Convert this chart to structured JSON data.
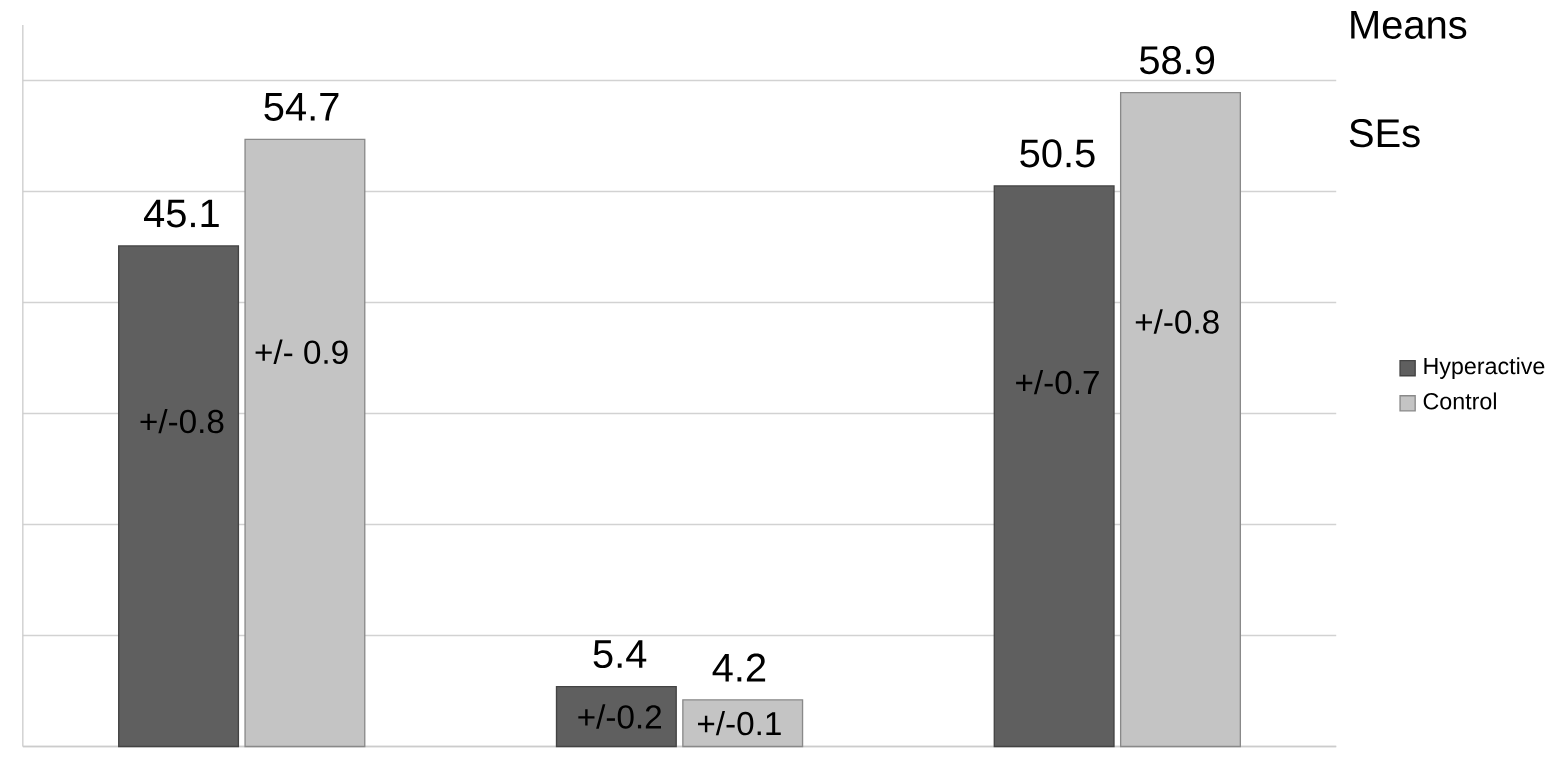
{
  "chart_data": {
    "type": "bar",
    "categories": [
      null,
      null,
      null
    ],
    "series": [
      {
        "name": "Hyperactive",
        "color": "#5f5f5f",
        "values": [
          45.1,
          5.4,
          50.5
        ]
      },
      {
        "name": "Control",
        "color": "#c4c4c4",
        "values": [
          54.7,
          4.2,
          58.9
        ]
      }
    ],
    "data_labels": true,
    "ylim": [
      0,
      65
    ],
    "yticks": [
      {
        "value": 0,
        "label": null
      },
      {
        "value": 10,
        "label": null
      },
      {
        "value": 20,
        "label": null
      },
      {
        "value": 30,
        "label": null
      },
      {
        "value": 40,
        "label": null
      },
      {
        "value": 50,
        "label": null
      },
      {
        "value": 60,
        "label": null
      }
    ],
    "grid": "y",
    "legend": "right",
    "annotations": [
      "Means",
      "SEs",
      "+/-0.8",
      "+/-0.2",
      "+/-0.7",
      "+/- 0.9",
      "+/-0.1",
      "+/-0.8"
    ]
  }
}
